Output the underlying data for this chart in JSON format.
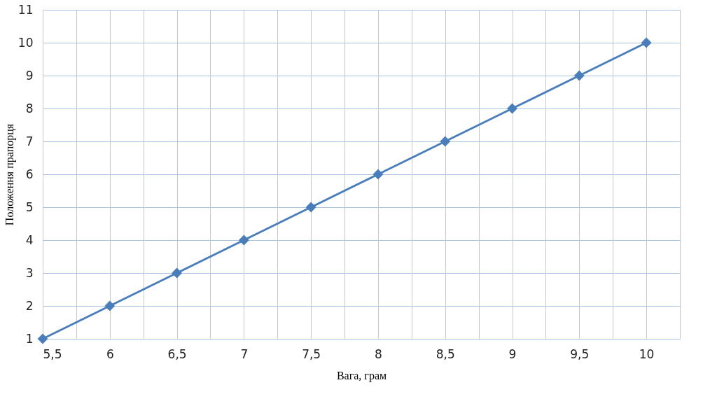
{
  "chart_data": {
    "type": "line",
    "xlabel": "Вага, грам",
    "ylabel": "Положення прапорця",
    "x": [
      5.5,
      6,
      6.5,
      7,
      7.5,
      8,
      8.5,
      9,
      9.5,
      10
    ],
    "series": [
      {
        "color": "#4a7ebb",
        "values": [
          1,
          2,
          3,
          4,
          5,
          6,
          7,
          8,
          9,
          10
        ]
      }
    ],
    "xlim": [
      5.5,
      10.25
    ],
    "xticks": [
      {
        "value": 5.5,
        "label": "5,5"
      },
      {
        "value": 5.75,
        "label": null
      },
      {
        "value": 6,
        "label": "6"
      },
      {
        "value": 6.25,
        "label": null
      },
      {
        "value": 6.5,
        "label": "6,5"
      },
      {
        "value": 6.75,
        "label": null
      },
      {
        "value": 7,
        "label": "7"
      },
      {
        "value": 7.25,
        "label": null
      },
      {
        "value": 7.5,
        "label": "7,5"
      },
      {
        "value": 7.75,
        "label": null
      },
      {
        "value": 8,
        "label": "8"
      },
      {
        "value": 8.25,
        "label": null
      },
      {
        "value": 8.5,
        "label": "8,5"
      },
      {
        "value": 8.75,
        "label": null
      },
      {
        "value": 9,
        "label": "9"
      },
      {
        "value": 9.25,
        "label": null
      },
      {
        "value": 9.5,
        "label": "9,5"
      },
      {
        "value": 9.75,
        "label": null
      },
      {
        "value": 10,
        "label": "10"
      },
      {
        "value": 10.25,
        "label": null
      }
    ],
    "ylim": [
      1,
      11
    ],
    "yticks": [
      1,
      2,
      3,
      4,
      5,
      6,
      7,
      8,
      9,
      10,
      11
    ],
    "grid": true,
    "marker": "diamond",
    "line_style": "solid"
  }
}
